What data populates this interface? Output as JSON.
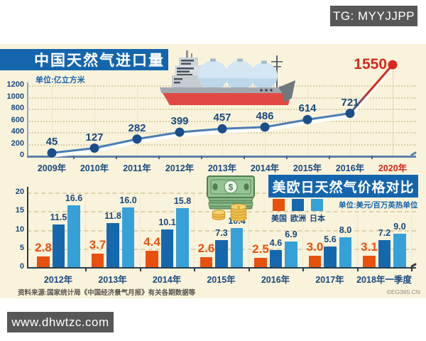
{
  "badges": {
    "tg": "TG: MYYJJPP",
    "site": "www.dhwtzc.com"
  },
  "footer": {
    "source": "资料来源:国家统计局《中国经济景气月报》有关各期数据等",
    "credit": "©EG365.CN"
  },
  "icons": {
    "ship": "lng-tanker-ship",
    "money": "dollar-bills-and-coins"
  },
  "colors": {
    "panel_bg": "#faf3db",
    "banner_blue": "#1565ad",
    "navy": "#17497f",
    "red": "#d6281e",
    "orange": "#e8500e",
    "europe_blue": "#1668ae",
    "japan_blue": "#36a1d9",
    "badge_gray": "#575757"
  },
  "chart_data": [
    {
      "type": "line",
      "title": "中国天然气进口量",
      "unit": "单位:亿立方米",
      "categories": [
        "2009年",
        "2010年",
        "2011年",
        "2012年",
        "2013年",
        "2014年",
        "2015年",
        "2016年",
        "2020年"
      ],
      "values": [
        45,
        127,
        282,
        399,
        457,
        486,
        614,
        721,
        1550
      ],
      "ylim": [
        0,
        1200
      ],
      "yticks": [
        0,
        200,
        400,
        600,
        800,
        1000,
        1200
      ],
      "grid": true,
      "line_color": "#4a7db5",
      "point_color": "#1a4e8c",
      "highlight_index": 8,
      "highlight_color": "#d6281e",
      "legend_position": "none"
    },
    {
      "type": "bar",
      "title": "美欧日天然气价格对比",
      "unit": "单位:美元/百万英热单位",
      "categories": [
        "2012年",
        "2013年",
        "2014年",
        "2015年",
        "2016年",
        "2017年",
        "2018年一季度"
      ],
      "series": [
        {
          "name": "美国",
          "color": "#e8500e",
          "values": [
            2.8,
            3.7,
            4.4,
            2.6,
            2.5,
            3.0,
            3.1
          ]
        },
        {
          "name": "欧洲",
          "color": "#1668ae",
          "values": [
            11.5,
            11.8,
            10.1,
            7.3,
            4.6,
            5.6,
            7.2
          ]
        },
        {
          "name": "日本",
          "color": "#36a1d9",
          "values": [
            16.6,
            16.0,
            15.8,
            10.4,
            6.9,
            8.0,
            9.0
          ]
        }
      ],
      "ylim": [
        0,
        20
      ],
      "yticks": [
        0,
        5,
        10,
        15,
        20
      ],
      "grid": true,
      "legend_position": "top"
    }
  ]
}
